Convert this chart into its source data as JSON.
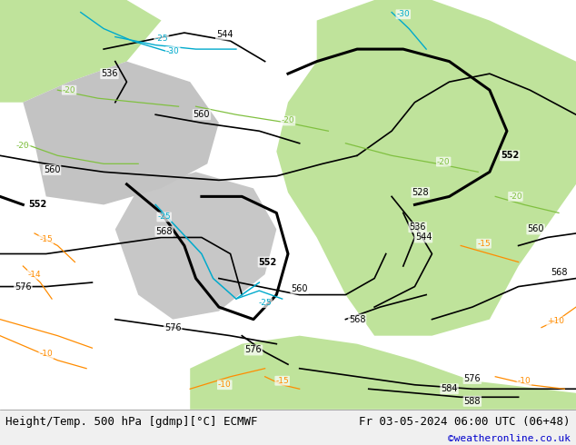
{
  "title_left": "Height/Temp. 500 hPa [gdmp][°C] ECMWF",
  "title_right": "Fr 03-05-2024 06:00 UTC (06+48)",
  "watermark": "©weatheronline.co.uk",
  "fig_width": 6.34,
  "fig_height": 4.9,
  "dpi": 100,
  "title_fontsize": 9,
  "watermark_color": "#0000cc",
  "watermark_fontsize": 8,
  "orange": "#ff8c00",
  "cyan": "#00aacc",
  "green_t": "#80c040",
  "black": "#000000",
  "bg_grey": "#c8c8c8",
  "bg_green": "#b8e090"
}
